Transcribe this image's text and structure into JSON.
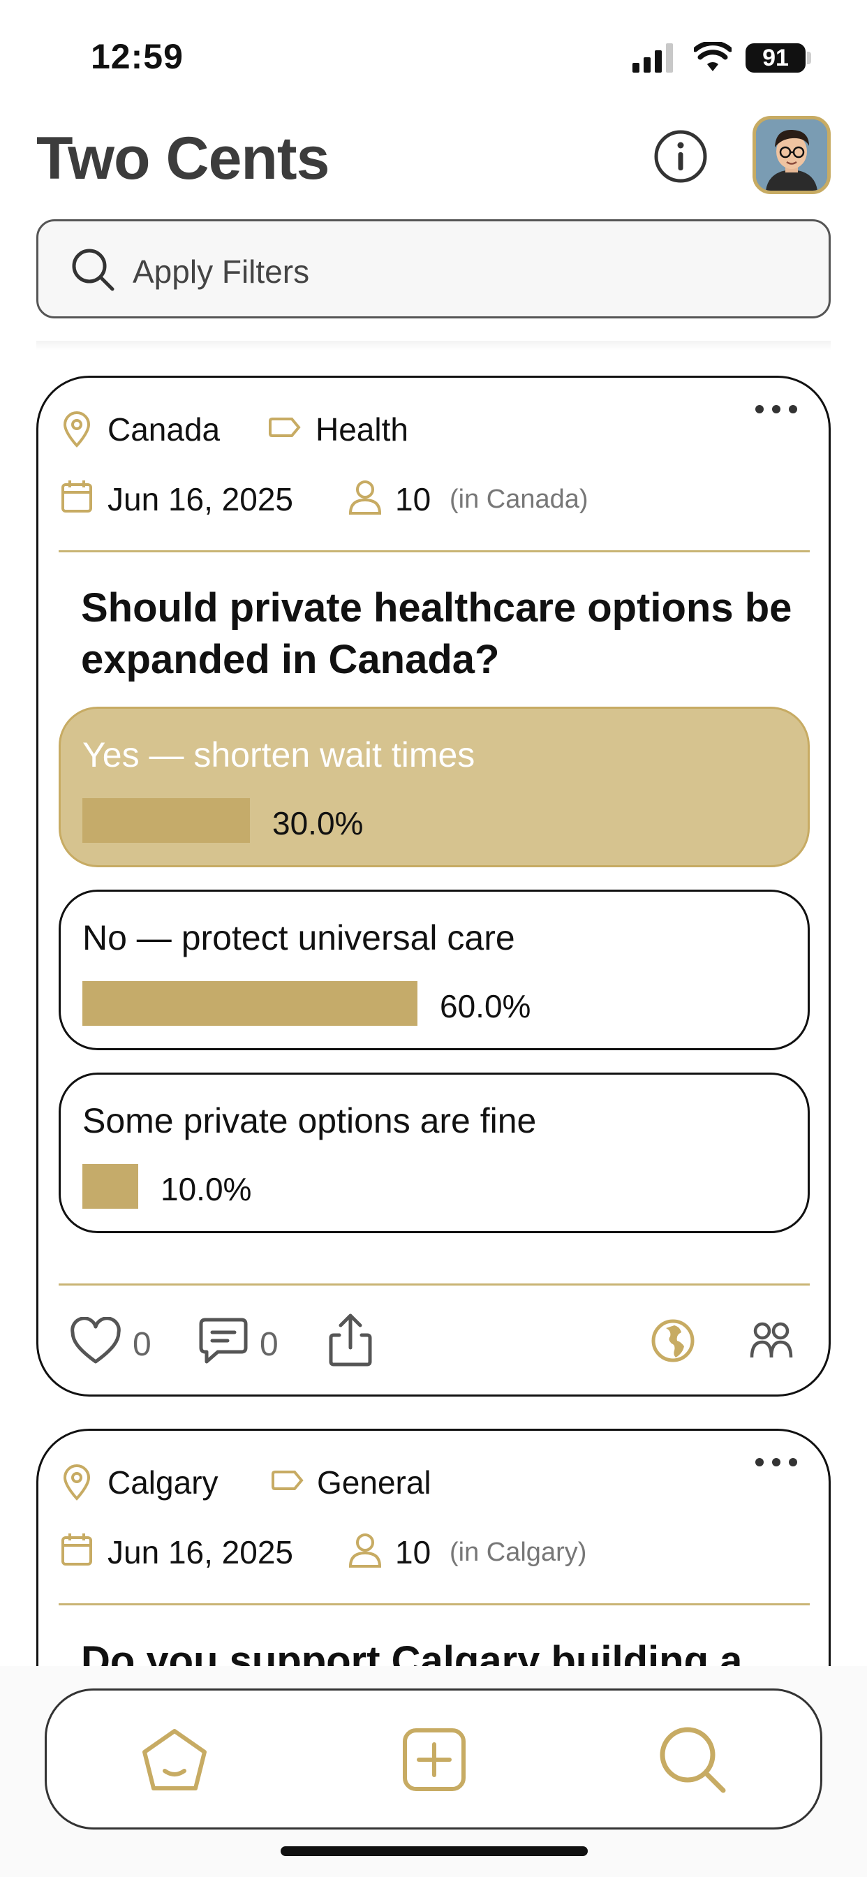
{
  "status_bar": {
    "time": "12:59",
    "battery": "91"
  },
  "header": {
    "title": "Two Cents"
  },
  "search": {
    "placeholder": "Apply Filters"
  },
  "colors": {
    "accent": "#c7ab63",
    "selected_option": "#d6c38f",
    "bar": "#c5ab6a"
  },
  "posts": [
    {
      "location": "Canada",
      "category": "Health",
      "date": "Jun 16, 2025",
      "participants": "10",
      "participants_scope": "(in Canada)",
      "question": "Should private healthcare options be expanded in Canada?",
      "options": [
        {
          "label": "Yes — shorten wait times",
          "percent": "30.0%",
          "fraction": 0.3,
          "selected": true
        },
        {
          "label": "No — protect universal care",
          "percent": "60.0%",
          "fraction": 0.6,
          "selected": false
        },
        {
          "label": "Some private options are fine",
          "percent": "10.0%",
          "fraction": 0.1,
          "selected": false
        }
      ],
      "likes": "0",
      "comments": "0"
    },
    {
      "location": "Calgary",
      "category": "General",
      "date": "Jun 16, 2025",
      "participants": "10",
      "participants_scope": "(in Calgary)",
      "question": "Do you support Calgary building a"
    }
  ],
  "nav": {
    "icons": [
      "home-icon",
      "add-icon",
      "search-icon"
    ]
  }
}
